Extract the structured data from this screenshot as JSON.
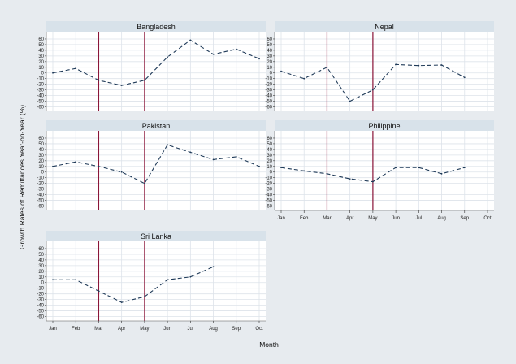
{
  "chart_data": {
    "type": "line",
    "xlabel": "Month",
    "ylabel": "Growth Rates of Remittances Year-on-Year (%)",
    "x": [
      "Jan",
      "Feb",
      "Mar",
      "Apr",
      "May",
      "Jun",
      "Jul",
      "Aug",
      "Sep",
      "Oct"
    ],
    "yticks": [
      60,
      50,
      40,
      30,
      20,
      10,
      0,
      -10,
      -20,
      -30,
      -40,
      -50,
      -60
    ],
    "ylim": [
      -65,
      70
    ],
    "reference_lines_x": [
      "Mar",
      "May"
    ],
    "grid": true,
    "colors": {
      "background": "#e7ebef",
      "panel": "#ffffff",
      "strip": "#d8e2ea",
      "grid": "#dde3ea",
      "line": "#1f3a58",
      "reference_line": "#8a1538"
    },
    "series": [
      {
        "name": "Bangladesh",
        "values": [
          0,
          8,
          -13,
          -22,
          -13,
          28,
          58,
          33,
          42,
          25
        ]
      },
      {
        "name": "Nepal",
        "values": [
          3,
          -10,
          10,
          -50,
          -30,
          15,
          13,
          14,
          -8,
          null
        ]
      },
      {
        "name": "Pakistan",
        "values": [
          10,
          18,
          10,
          0,
          -20,
          48,
          35,
          22,
          27,
          10
        ]
      },
      {
        "name": "Philippine",
        "values": [
          8,
          2,
          -3,
          -12,
          -17,
          8,
          8,
          -3,
          8,
          null
        ]
      },
      {
        "name": "Sri Lanka",
        "values": [
          5,
          5,
          -15,
          -35,
          -25,
          5,
          10,
          28,
          null,
          null
        ]
      }
    ]
  }
}
